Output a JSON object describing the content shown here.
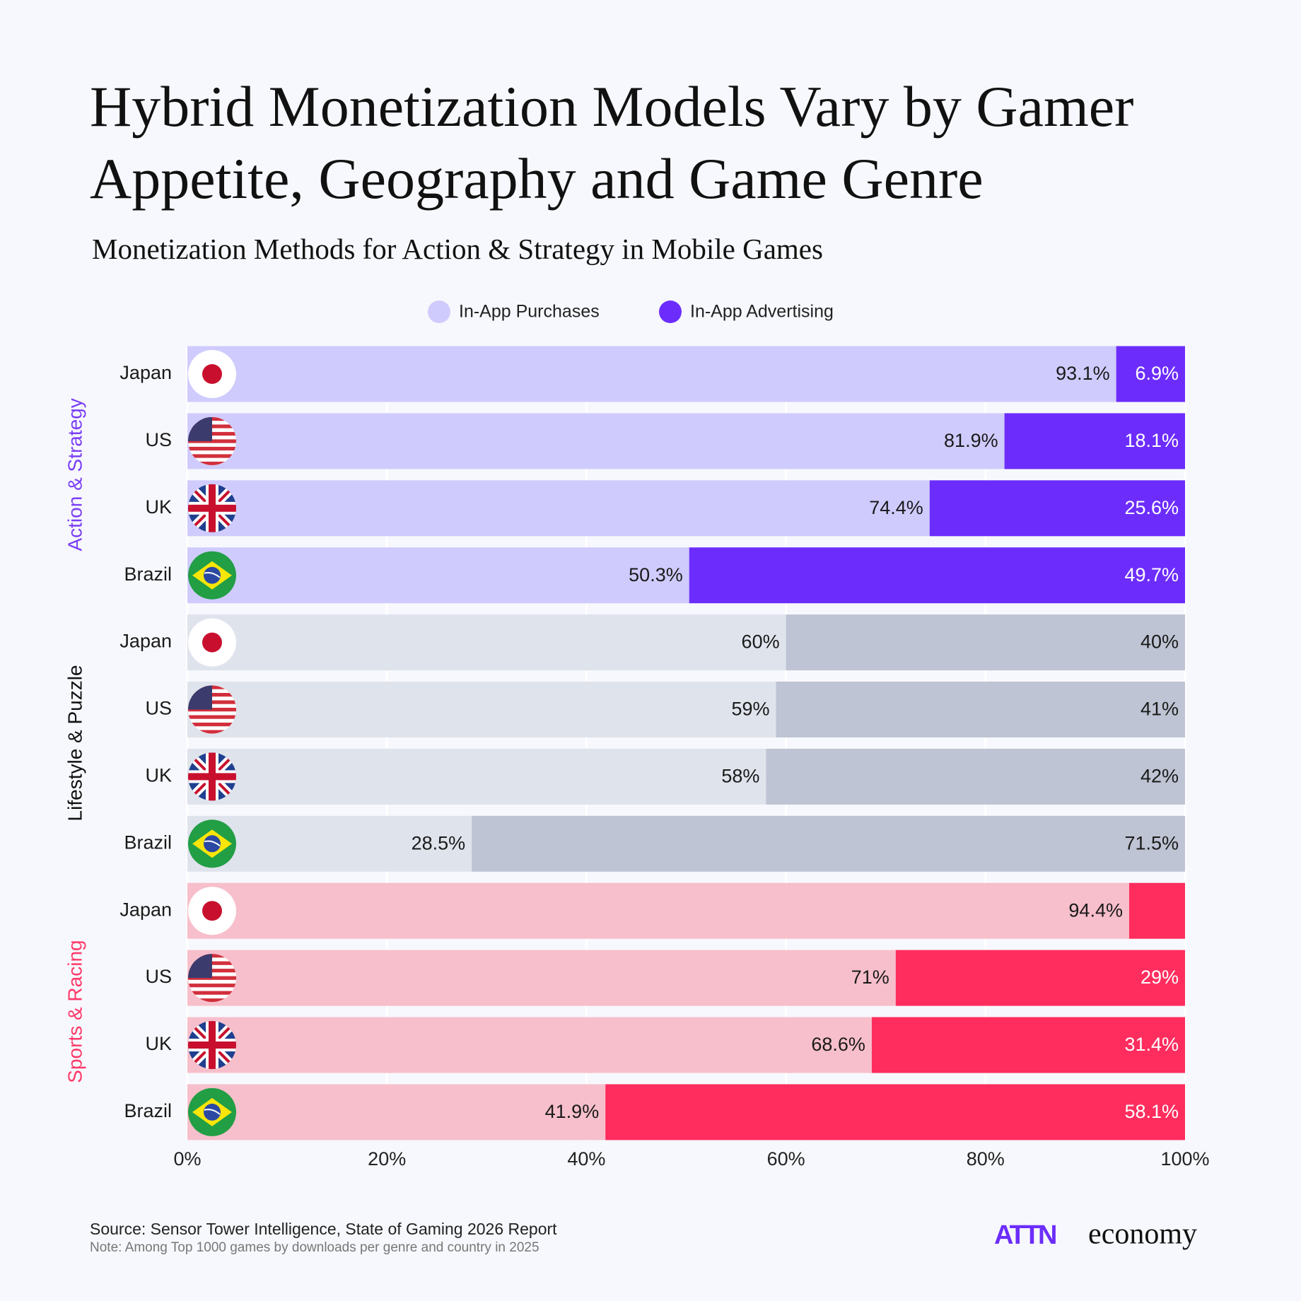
{
  "chart_data": {
    "type": "bar",
    "orientation": "horizontal",
    "stacked": true,
    "title": "Hybrid Monetization Models Vary by Gamer Appetite, Geography and Game Genre",
    "subtitle": "Monetization Methods for Action & Strategy in Mobile Games",
    "legend": [
      {
        "name": "In-App Purchases",
        "color": "#cfcbfd"
      },
      {
        "name": "In-App Advertising",
        "color": "#6c2dfc"
      }
    ],
    "groups": [
      {
        "name": "Action & Strategy",
        "label_color": "#7b3ff6",
        "categories": [
          "Japan",
          "US",
          "UK",
          "Brazil"
        ],
        "series": [
          {
            "color": "#cfcbfd",
            "label_color": "#1a1a1a",
            "values": [
              93.1,
              81.9,
              74.4,
              50.3
            ],
            "value_labels": [
              "93.1%",
              "81.9%",
              "74.4%",
              "50.3%"
            ]
          },
          {
            "color": "#6c2dfc",
            "label_color": "#ffffff",
            "values": [
              6.9,
              18.1,
              25.6,
              49.7
            ],
            "value_labels": [
              "6.9%",
              "18.1%",
              "25.6%",
              "49.7%"
            ]
          }
        ]
      },
      {
        "name": "Lifestyle & Puzzle",
        "label_color": "#111111",
        "categories": [
          "Japan",
          "US",
          "UK",
          "Brazil"
        ],
        "series": [
          {
            "color": "#dfe3ec",
            "label_color": "#1a1a1a",
            "values": [
              60,
              59,
              58,
              28.5
            ],
            "value_labels": [
              "60%",
              "59%",
              "58%",
              "28.5%"
            ]
          },
          {
            "color": "#bec4d3",
            "label_color": "#1a1a1a",
            "values": [
              40,
              41,
              42,
              71.5
            ],
            "value_labels": [
              "40%",
              "41%",
              "42%",
              "71.5%"
            ]
          }
        ]
      },
      {
        "name": "Sports & Racing",
        "label_color": "#ff3a6a",
        "categories": [
          "Japan",
          "US",
          "UK",
          "Brazil"
        ],
        "series": [
          {
            "color": "#f7bfcb",
            "label_color": "#1a1a1a",
            "values": [
              94.4,
              71,
              68.6,
              41.9
            ],
            "value_labels": [
              "94.4%",
              "71%",
              "68.6%",
              "41.9%"
            ]
          },
          {
            "color": "#ff2d5e",
            "label_color": "#ffffff",
            "values": [
              5.6,
              29,
              31.4,
              58.1
            ],
            "value_labels": [
              null,
              "29%",
              "31.4%",
              "58.1%"
            ]
          }
        ]
      }
    ],
    "xlim": [
      0,
      100
    ],
    "xticks": [
      {
        "value": 0,
        "label": "0%"
      },
      {
        "value": 20,
        "label": "20%"
      },
      {
        "value": 40,
        "label": "40%"
      },
      {
        "value": 60,
        "label": "60%"
      },
      {
        "value": 80,
        "label": "80%"
      },
      {
        "value": 100,
        "label": "100%"
      }
    ],
    "grid": true,
    "source": "Source: Sensor Tower Intelligence, State of Gaming 2026 Report",
    "note": "Note: Among Top 1000 games by downloads per genre and country in 2025",
    "logo": [
      "ATTN",
      "economy"
    ]
  }
}
